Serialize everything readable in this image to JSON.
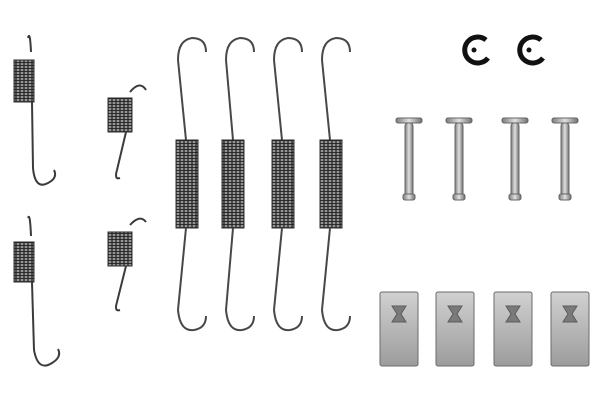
{
  "colors": {
    "background": "#ffffff",
    "wire_dark": "#3a3a3a",
    "wire_light": "#9a9a9a",
    "coil_dark": "#2c2c2c",
    "coil_light": "#a8a8a8",
    "metal_base": "#b9b9b9",
    "metal_shadow": "#6d6d6d",
    "clip_black": "#111111"
  },
  "parts": {
    "long_springs": 4,
    "hook_springs_left": 2,
    "small_torsion_springs": 2,
    "retaining_clips": 2,
    "hold_down_pins": 4,
    "spring_caps": 4
  },
  "icons": {
    "spring": "coil-spring-icon",
    "clip": "e-clip-icon",
    "pin": "pin-icon",
    "cap": "spring-cap-icon"
  }
}
